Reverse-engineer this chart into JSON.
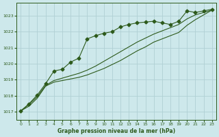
{
  "title": "Graphe pression niveau de la mer (hPa)",
  "bg_color": "#cde8eb",
  "grid_color": "#b0d0d4",
  "line_color": "#2d5a1b",
  "xlim": [
    -0.5,
    23.5
  ],
  "ylim": [
    1016.5,
    1023.8
  ],
  "yticks": [
    1017,
    1018,
    1019,
    1020,
    1021,
    1022,
    1023
  ],
  "xticks": [
    0,
    1,
    2,
    3,
    4,
    5,
    6,
    7,
    8,
    9,
    10,
    11,
    12,
    13,
    14,
    15,
    16,
    17,
    18,
    19,
    20,
    21,
    22,
    23
  ],
  "series_marked_x": [
    0,
    1,
    2,
    3,
    4,
    5,
    6,
    7,
    8,
    9,
    10,
    11,
    12,
    13,
    14,
    15,
    16,
    17,
    18,
    19,
    20,
    21,
    22,
    23
  ],
  "series_marked_y": [
    1017.05,
    1017.5,
    1018.05,
    1018.75,
    1019.55,
    1019.65,
    1020.1,
    1020.35,
    1021.55,
    1021.75,
    1021.9,
    1022.0,
    1022.3,
    1022.45,
    1022.55,
    1022.6,
    1022.65,
    1022.55,
    1022.45,
    1022.65,
    1023.3,
    1023.2,
    1023.3,
    1023.4
  ],
  "series_linear_x": [
    0,
    1,
    2,
    3,
    4,
    5,
    6,
    7,
    8,
    9,
    10,
    11,
    12,
    13,
    14,
    15,
    16,
    17,
    18,
    19,
    20,
    21,
    22,
    23
  ],
  "series_linear_y": [
    1017.05,
    1017.35,
    1017.85,
    1018.6,
    1018.85,
    1018.95,
    1019.05,
    1019.15,
    1019.3,
    1019.5,
    1019.7,
    1019.95,
    1020.2,
    1020.5,
    1020.8,
    1021.05,
    1021.35,
    1021.55,
    1021.75,
    1021.95,
    1022.4,
    1022.75,
    1023.05,
    1023.35
  ],
  "series_curve_x": [
    0,
    1,
    2,
    3,
    4,
    5,
    6,
    7,
    8,
    9,
    10,
    11,
    12,
    13,
    14,
    15,
    16,
    17,
    18,
    19,
    20,
    21,
    22,
    23
  ],
  "series_curve_y": [
    1017.05,
    1017.45,
    1017.95,
    1018.65,
    1018.95,
    1019.1,
    1019.25,
    1019.4,
    1019.6,
    1019.85,
    1020.15,
    1020.45,
    1020.75,
    1021.05,
    1021.35,
    1021.6,
    1021.85,
    1022.05,
    1022.25,
    1022.45,
    1022.8,
    1023.05,
    1023.2,
    1023.35
  ]
}
